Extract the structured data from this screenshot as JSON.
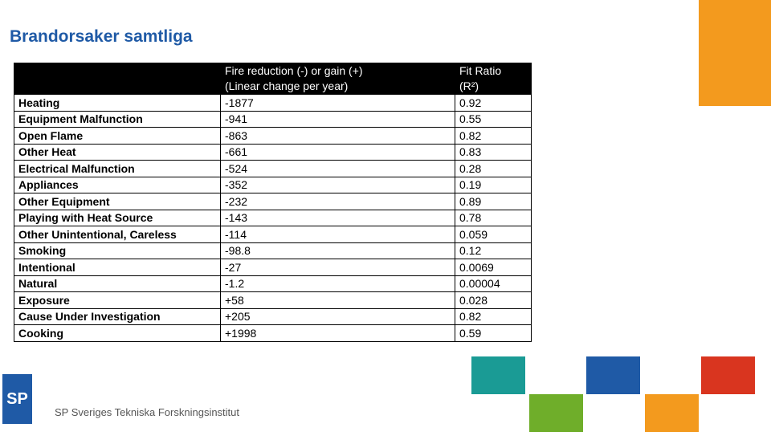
{
  "title": "Brandorsaker samtliga",
  "table": {
    "header": [
      [
        ""
      ],
      [
        "Fire reduction (-) or gain (+)",
        "(Linear change per year)"
      ],
      [
        "Fit Ratio",
        "(R²)"
      ]
    ],
    "rows": [
      [
        "Heating",
        "-1877",
        "0.92"
      ],
      [
        "Equipment Malfunction",
        "-941",
        "0.55"
      ],
      [
        "Open Flame",
        "-863",
        "0.82"
      ],
      [
        "Other Heat",
        "-661",
        "0.83"
      ],
      [
        "Electrical Malfunction",
        "-524",
        "0.28"
      ],
      [
        "Appliances",
        "-352",
        "0.19"
      ],
      [
        "Other Equipment",
        "-232",
        "0.89"
      ],
      [
        "Playing with Heat Source",
        "-143",
        "0.78"
      ],
      [
        "Other Unintentional, Careless",
        "-114",
        "0.059"
      ],
      [
        "Smoking",
        "-98.8",
        "0.12"
      ],
      [
        "Intentional",
        "-27",
        "0.0069"
      ],
      [
        "Natural",
        "-1.2",
        "0.00004"
      ],
      [
        "Exposure",
        "+58",
        "0.028"
      ],
      [
        "Cause Under Investigation",
        "+205",
        "0.82"
      ],
      [
        "Cooking",
        "+1998",
        "0.59"
      ]
    ]
  },
  "footer": {
    "logo": "SP",
    "organization": "SP Sveriges Tekniska Forskningsinstitut"
  }
}
